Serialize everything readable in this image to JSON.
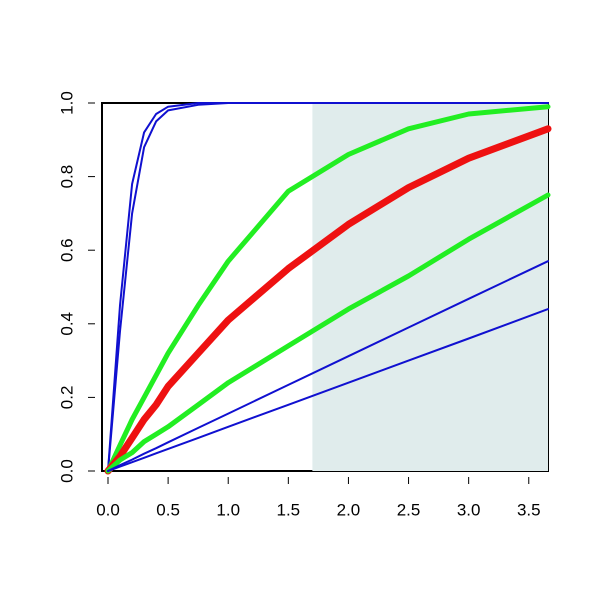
{
  "chart_data": {
    "type": "line",
    "x": [
      0,
      0.1,
      0.2,
      0.3,
      0.4,
      0.5,
      0.75,
      1,
      1.5,
      2,
      2.5,
      3,
      3.66
    ],
    "series": [
      {
        "color": "#1010d0",
        "width": 2,
        "values": [
          0,
          0.45,
          0.78,
          0.92,
          0.97,
          0.99,
          1,
          1,
          1,
          1,
          1,
          1,
          1
        ]
      },
      {
        "color": "#1010d0",
        "width": 2,
        "values": [
          0,
          0.38,
          0.7,
          0.88,
          0.95,
          0.98,
          0.995,
          1,
          1,
          1,
          1,
          1,
          1
        ]
      },
      {
        "color": "#22ee22",
        "width": 5,
        "values": [
          0,
          0.07,
          0.14,
          0.2,
          0.26,
          0.32,
          0.45,
          0.57,
          0.76,
          0.86,
          0.93,
          0.97,
          0.99
        ]
      },
      {
        "color": "#ee1111",
        "width": 7,
        "values": [
          0,
          0.04,
          0.09,
          0.14,
          0.18,
          0.23,
          0.32,
          0.41,
          0.55,
          0.67,
          0.77,
          0.85,
          0.93
        ]
      },
      {
        "color": "#22ee22",
        "width": 5,
        "values": [
          0,
          0.03,
          0.05,
          0.08,
          0.1,
          0.12,
          0.18,
          0.24,
          0.34,
          0.44,
          0.53,
          0.63,
          0.75
        ]
      },
      {
        "color": "#1010d0",
        "width": 2,
        "values": [
          0,
          0.016,
          0.031,
          0.047,
          0.062,
          0.078,
          0.117,
          0.156,
          0.234,
          0.312,
          0.39,
          0.468,
          0.57
        ]
      },
      {
        "color": "#1010d0",
        "width": 2,
        "values": [
          0,
          0.012,
          0.024,
          0.036,
          0.048,
          0.06,
          0.09,
          0.12,
          0.18,
          0.24,
          0.3,
          0.36,
          0.44
        ]
      }
    ],
    "shaded_xlim": [
      1.7,
      3.66
    ],
    "shade_color": "#e0ecec",
    "xlim": [
      -0.05,
      3.66
    ],
    "ylim": [
      0,
      1
    ],
    "xticks": [
      {
        "value": 0,
        "label": "0.0"
      },
      {
        "value": 0.5,
        "label": "0.5"
      },
      {
        "value": 1,
        "label": "1.0"
      },
      {
        "value": 1.5,
        "label": "1.5"
      },
      {
        "value": 2,
        "label": "2.0"
      },
      {
        "value": 2.5,
        "label": "2.5"
      },
      {
        "value": 3,
        "label": "3.0"
      },
      {
        "value": 3.5,
        "label": "3.5"
      }
    ],
    "yticks": [
      {
        "value": 0,
        "label": "0.0"
      },
      {
        "value": 0.2,
        "label": "0.2"
      },
      {
        "value": 0.4,
        "label": "0.4"
      },
      {
        "value": 0.6,
        "label": "0.6"
      },
      {
        "value": 0.8,
        "label": "0.8"
      },
      {
        "value": 1,
        "label": "1.0"
      }
    ]
  }
}
